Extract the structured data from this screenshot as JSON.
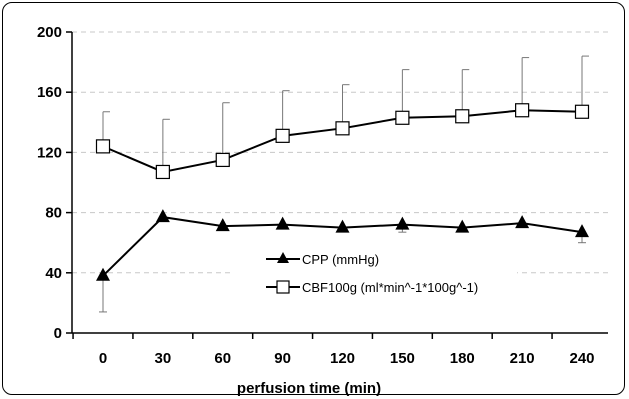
{
  "chart_data": {
    "type": "line",
    "xlabel": "perfusion time (min)",
    "ylabel": "",
    "title": "",
    "x": [
      0,
      30,
      60,
      90,
      120,
      150,
      180,
      210,
      240
    ],
    "x_tick_labels": [
      "0",
      "30",
      "60",
      "90",
      "120",
      "150",
      "180",
      "210",
      "240"
    ],
    "ylim": [
      0,
      200
    ],
    "y_ticks": [
      0,
      40,
      80,
      120,
      160,
      200
    ],
    "y_tick_labels": [
      "0",
      "40",
      "80",
      "120",
      "160",
      "200"
    ],
    "grid": "horizontal dashed",
    "legend_position": "center",
    "series": [
      {
        "name": "CPP (mmHg)",
        "marker": "filled-triangle",
        "color": "#000000",
        "values": [
          38,
          77,
          71,
          72,
          70,
          72,
          70,
          73,
          67
        ],
        "error_up": [
          0,
          0,
          0,
          0,
          0,
          0,
          0,
          0,
          0
        ],
        "error_down": [
          24,
          0,
          0,
          0,
          0,
          5,
          0,
          0,
          7
        ]
      },
      {
        "name": "CBF100g (ml*min^-1*100g^-1)",
        "marker": "open-square",
        "color": "#000000",
        "values": [
          124,
          107,
          115,
          131,
          136,
          143,
          144,
          148,
          147
        ],
        "error_up": [
          23,
          35,
          38,
          30,
          29,
          32,
          31,
          35,
          37
        ],
        "error_down": [
          0,
          0,
          0,
          0,
          0,
          0,
          0,
          0,
          0
        ]
      }
    ]
  }
}
